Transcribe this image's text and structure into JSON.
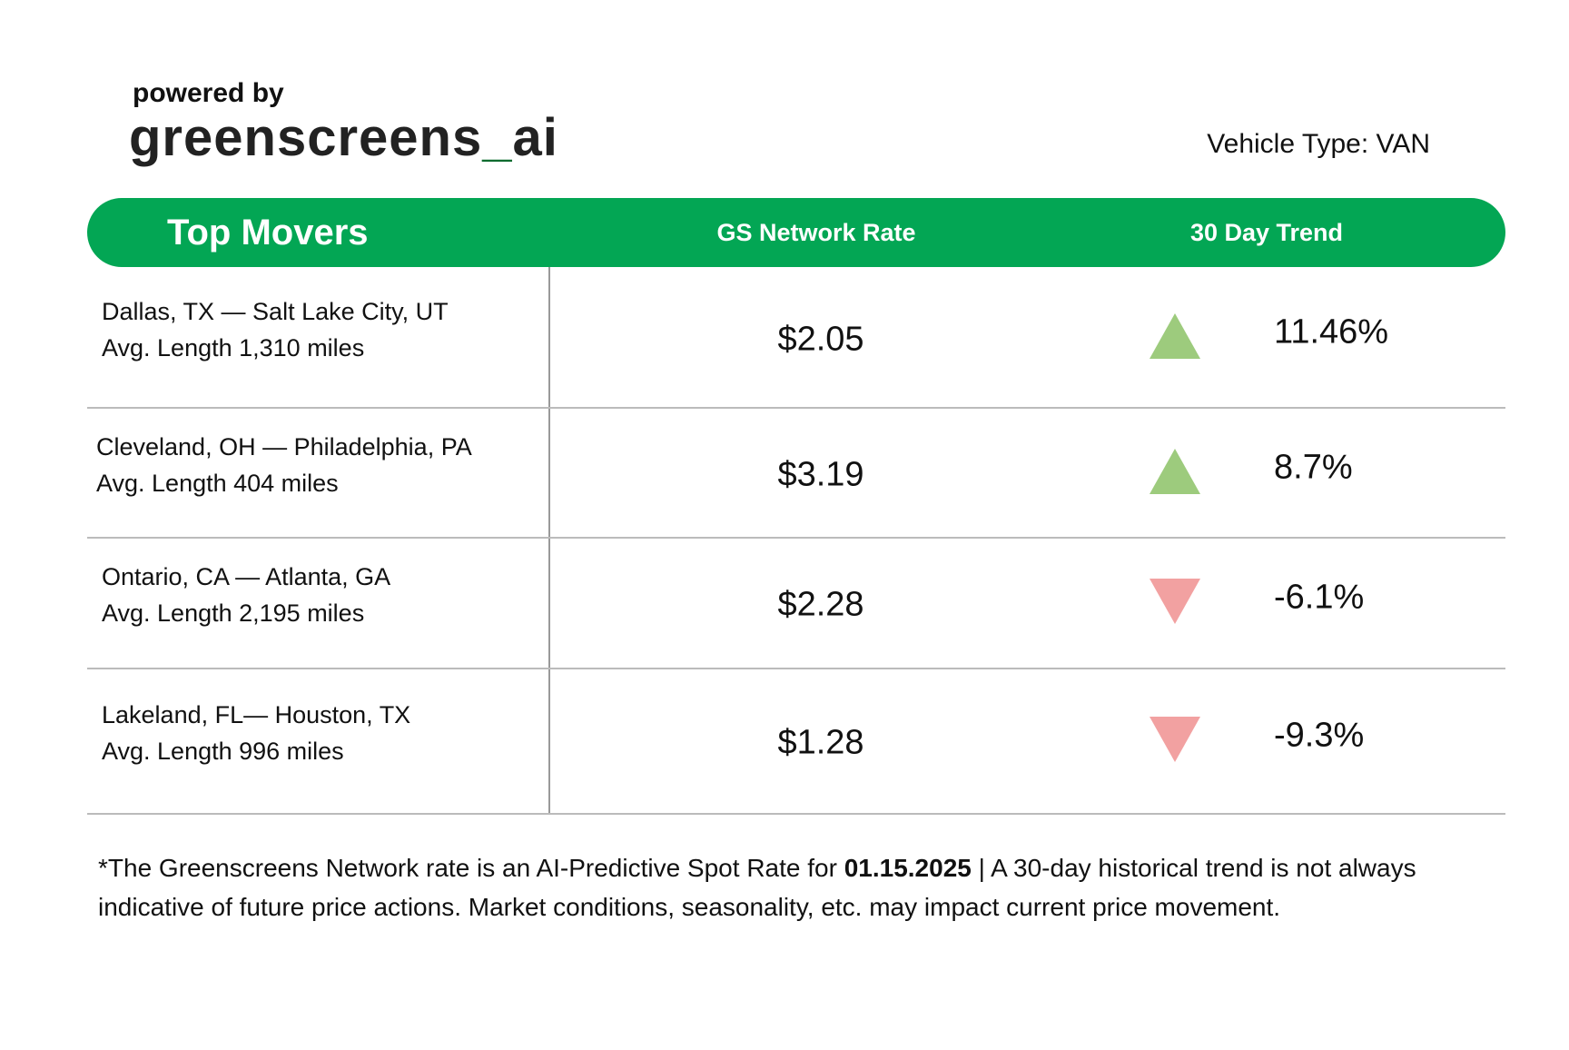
{
  "header": {
    "powered_by": "powered by",
    "logo": [
      "greenscreens",
      "_",
      "ai"
    ],
    "vehicle_type": "Vehicle Type: VAN"
  },
  "table": {
    "headers": [
      "Top Movers",
      "GS Network Rate",
      "30 Day Trend"
    ],
    "rows": [
      {
        "route": "Dallas, TX — Salt Lake City, UT",
        "length": "Avg. Length 1,310 miles",
        "rate": "$2.05",
        "trend": "11.46%",
        "direction": "up"
      },
      {
        "route": "Cleveland, OH — Philadelphia, PA",
        "length": "Avg. Length 404 miles",
        "rate": "$3.19",
        "trend": "8.7%",
        "direction": "up"
      },
      {
        "route": "Ontario, CA — Atlanta, GA",
        "length": "Avg. Length 2,195 miles",
        "rate": "$2.28",
        "trend": "-6.1%",
        "direction": "down"
      },
      {
        "route": "Lakeland, FL— Houston, TX",
        "length": "Avg. Length 996 miles",
        "rate": "$1.28",
        "trend": "-9.3%",
        "direction": "down"
      }
    ],
    "up_color": "#9dcb7d",
    "down_color": "#f2a1a1"
  },
  "footnote": [
    "*The Greenscreens Network rate is an AI-Predictive Spot Rate for ",
    "01.15.2025",
    " | A 30-day historical trend is not always indicative of future price actions. Market conditions, seasonality, etc. may impact current price movement."
  ]
}
